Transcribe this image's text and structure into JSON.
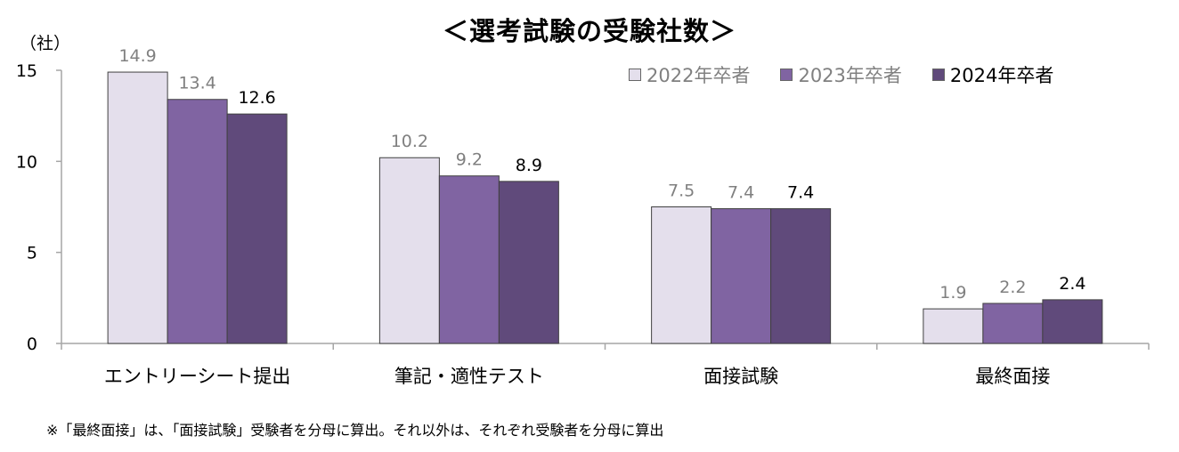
{
  "title": "＜選考試験の受験社数＞",
  "unit_label": "（社）",
  "footnote": "※「最終面接」は、「面接試験」受験者を分母に算出。それ以外は、それぞれ受験者を分母に算出",
  "colors": {
    "series_2022": "#e4dfec",
    "series_2023": "#8064a2",
    "series_2024": "#604a7b",
    "label_muted": "#808080",
    "label_strong": "#000000",
    "axis": "#a6a6a6"
  },
  "chart_data": {
    "type": "bar",
    "title": "＜選考試験の受験社数＞",
    "ylabel": "（社）",
    "xlabel": "",
    "ylim": [
      0,
      15
    ],
    "yticks": [
      0,
      5,
      10,
      15
    ],
    "grid": false,
    "legend_position": "top-right",
    "categories": [
      "エントリーシート提出",
      "筆記・適性テスト",
      "面接試験",
      "最終面接"
    ],
    "series": [
      {
        "name": "2022年卒者",
        "values": [
          14.9,
          10.2,
          7.5,
          1.9
        ]
      },
      {
        "name": "2023年卒者",
        "values": [
          13.4,
          9.2,
          7.4,
          2.2
        ]
      },
      {
        "name": "2024年卒者",
        "values": [
          12.6,
          8.9,
          7.4,
          2.4
        ]
      }
    ],
    "value_labels": [
      [
        "14.9",
        "10.2",
        "7.5",
        "1.9"
      ],
      [
        "13.4",
        "9.2",
        "7.4",
        "2.2"
      ],
      [
        "12.6",
        "8.9",
        "7.4",
        "2.4"
      ]
    ]
  }
}
